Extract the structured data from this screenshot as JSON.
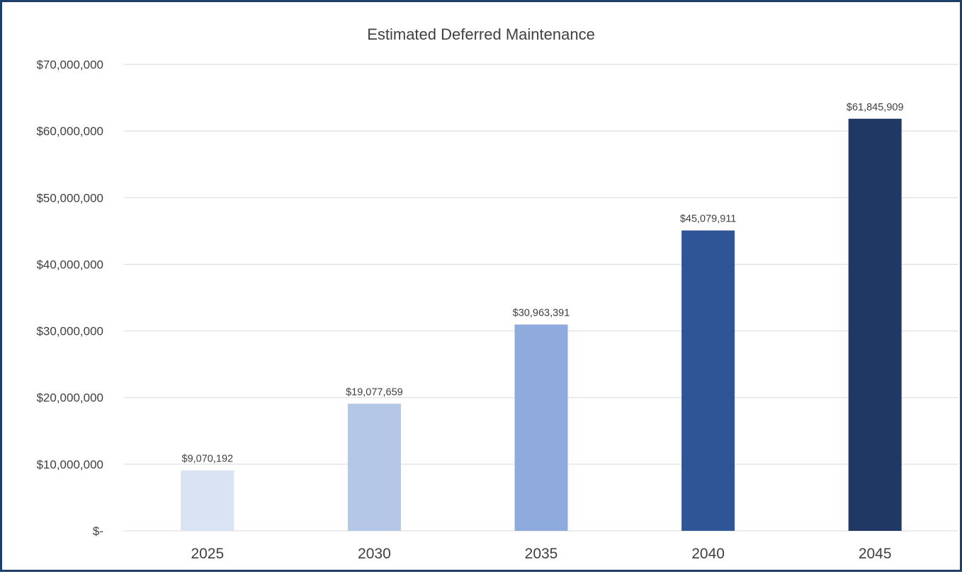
{
  "chart_data": {
    "type": "bar",
    "title": "Estimated Deferred Maintenance",
    "xlabel": "",
    "ylabel": "",
    "categories": [
      "2025",
      "2030",
      "2035",
      "2040",
      "2045"
    ],
    "values": [
      9070192,
      19077659,
      30963391,
      45079911,
      61845909
    ],
    "data_labels": [
      "$9,070,192",
      "$19,077,659",
      "$30,963,391",
      "$45,079,911",
      "$61,845,909"
    ],
    "bar_colors": [
      "#dae3f3",
      "#b4c7e7",
      "#8faadc",
      "#2f5597",
      "#203864"
    ],
    "ylim": [
      0,
      70000000
    ],
    "yticks": [
      0,
      10000000,
      20000000,
      30000000,
      40000000,
      50000000,
      60000000,
      70000000
    ],
    "ytick_labels": [
      "$-",
      "$10,000,000",
      "$20,000,000",
      "$30,000,000",
      "$40,000,000",
      "$50,000,000",
      "$60,000,000",
      "$70,000,000"
    ],
    "grid": true,
    "legend": "none"
  },
  "colors": {
    "frame_border": "#1f3f6b",
    "gridline": "#d9d9d9",
    "text": "#404040"
  }
}
